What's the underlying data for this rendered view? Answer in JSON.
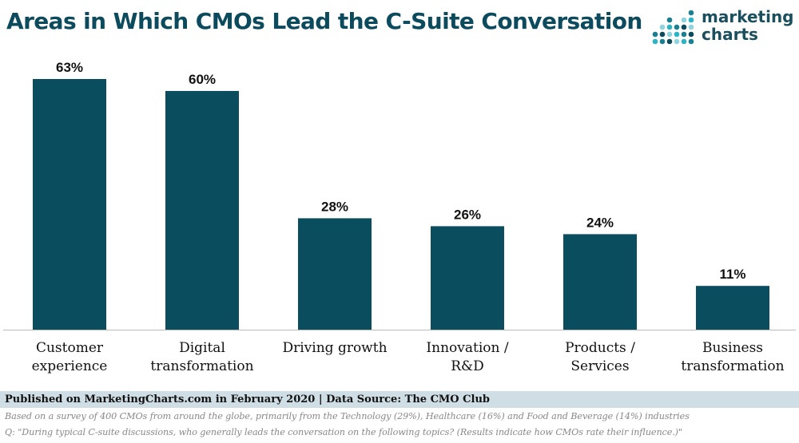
{
  "header": {
    "title": "Areas in Which CMOs Lead the C-Suite Conversation",
    "logo_line1": "marketing",
    "logo_line2": "charts",
    "logo_colors": [
      "#2bb3c6",
      "#1a7f91",
      "#0c4a5e",
      "#8fd3dd"
    ]
  },
  "chart_data": {
    "type": "bar",
    "title": "Areas in Which CMOs Lead the C-Suite Conversation",
    "categories": [
      [
        "Customer",
        "experience"
      ],
      [
        "Digital",
        "transformation"
      ],
      [
        "Driving growth"
      ],
      [
        "Innovation /",
        "R&D"
      ],
      [
        "Products /",
        "Services"
      ],
      [
        "Business",
        "transformation"
      ]
    ],
    "values": [
      63,
      60,
      28,
      26,
      24,
      11
    ],
    "value_suffix": "%",
    "xlabel": "",
    "ylabel": "",
    "ylim": [
      0,
      63
    ],
    "grid": false,
    "legend": "none",
    "bar_color": "#0a4d5f"
  },
  "footer": {
    "source": "Published on MarketingCharts.com in February 2020 | Data Source: The CMO Club",
    "note1": "Based on a survey of 400 CMOs from around the globe, primarily from the Technology (29%), Healthcare (16%) and Food and Beverage (14%) industries",
    "note2": "Q: \"During typical C-suite discussions, who generally leads the conversation on the following topics? (Results indicate how CMOs rate their influence.)\""
  }
}
